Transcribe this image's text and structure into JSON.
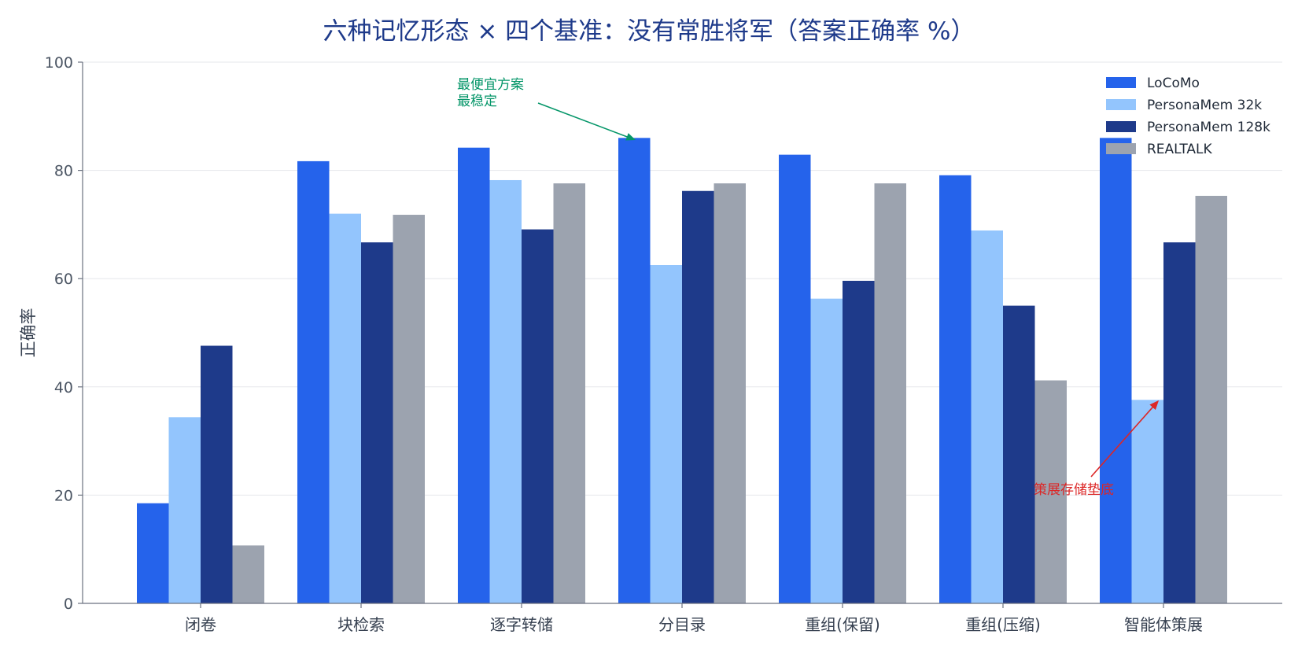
{
  "chart_data": {
    "type": "bar",
    "title": "六种记忆形态 × 四个基准：没有常胜将军（答案正确率 %）",
    "ylabel": "正确率",
    "xlabel": "",
    "ylim": [
      0,
      100
    ],
    "yticks": [
      0,
      20,
      40,
      60,
      80,
      100
    ],
    "grid": true,
    "legend_position": "top-right",
    "categories": [
      "闭卷",
      "块检索",
      "逐字转储",
      "分目录",
      "重组(保留)",
      "重组(压缩)",
      "智能体策展"
    ],
    "series": [
      {
        "name": "LoCoMo",
        "color": "#2563eb",
        "values": [
          18.5,
          81.7,
          84.2,
          86.0,
          82.9,
          79.1,
          86.0
        ]
      },
      {
        "name": "PersonaMem 32k",
        "color": "#93c5fd",
        "values": [
          34.4,
          72.0,
          78.2,
          62.5,
          56.3,
          68.9,
          37.6
        ]
      },
      {
        "name": "PersonaMem 128k",
        "color": "#1e3a8a",
        "values": [
          47.6,
          66.7,
          69.1,
          76.2,
          59.6,
          55.0,
          66.7
        ]
      },
      {
        "name": "REALTALK",
        "color": "#9ca3af",
        "values": [
          10.7,
          71.8,
          77.6,
          77.6,
          77.6,
          41.2,
          75.3
        ]
      }
    ],
    "annotations": [
      {
        "text": [
          "最便宜方案",
          "最稳定"
        ],
        "color": "#059669",
        "target_category": 3,
        "target_value": 86.0
      },
      {
        "text": [
          "策展存储垫底"
        ],
        "color": "#dc2626",
        "target_category": 6,
        "target_value": 37.6
      }
    ]
  }
}
